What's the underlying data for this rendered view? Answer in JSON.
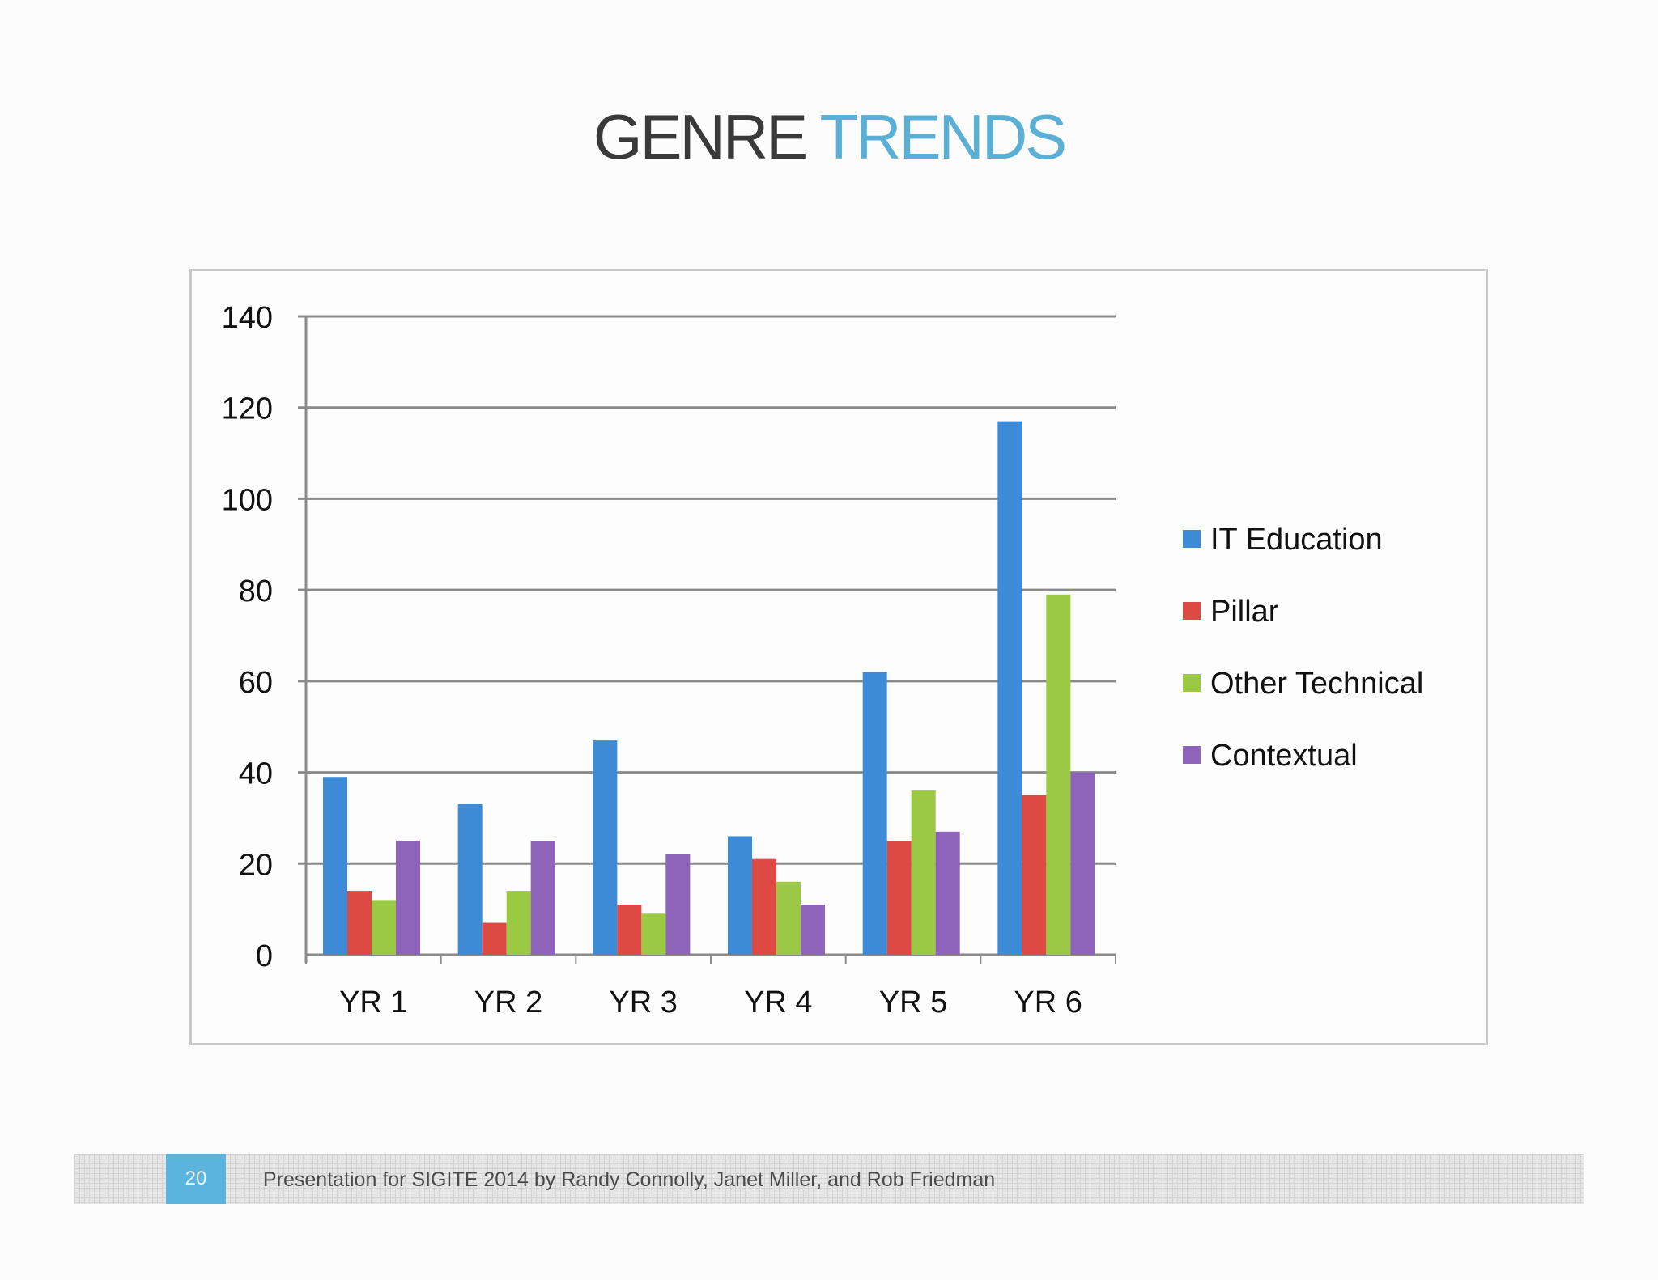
{
  "slide": {
    "title_part_1": "GENRE",
    "title_part_2": "TRENDS",
    "page_number": "20",
    "footer_text": "Presentation for SIGITE 2014 by Randy Connolly, Janet Miller, and Rob Friedman"
  },
  "chart_data": {
    "type": "bar",
    "title": "",
    "xlabel": "",
    "ylabel": "",
    "categories": [
      "YR 1",
      "YR 2",
      "YR 3",
      "YR 4",
      "YR 5",
      "YR 6"
    ],
    "series": [
      {
        "name": "IT Education",
        "color": "#3d8bd6",
        "values": [
          39,
          33,
          47,
          26,
          62,
          117
        ]
      },
      {
        "name": "Pillar",
        "color": "#dc4a43",
        "values": [
          14,
          7,
          11,
          21,
          25,
          35
        ]
      },
      {
        "name": "Other Technical",
        "color": "#9bc943",
        "values": [
          12,
          14,
          9,
          16,
          36,
          79
        ]
      },
      {
        "name": "Contextual",
        "color": "#8d64b9",
        "values": [
          25,
          25,
          22,
          11,
          27,
          40
        ]
      }
    ],
    "ylim": [
      0,
      140
    ],
    "yticks": [
      0,
      20,
      40,
      60,
      80,
      100,
      120,
      140
    ],
    "grid": true,
    "legend": "right"
  }
}
